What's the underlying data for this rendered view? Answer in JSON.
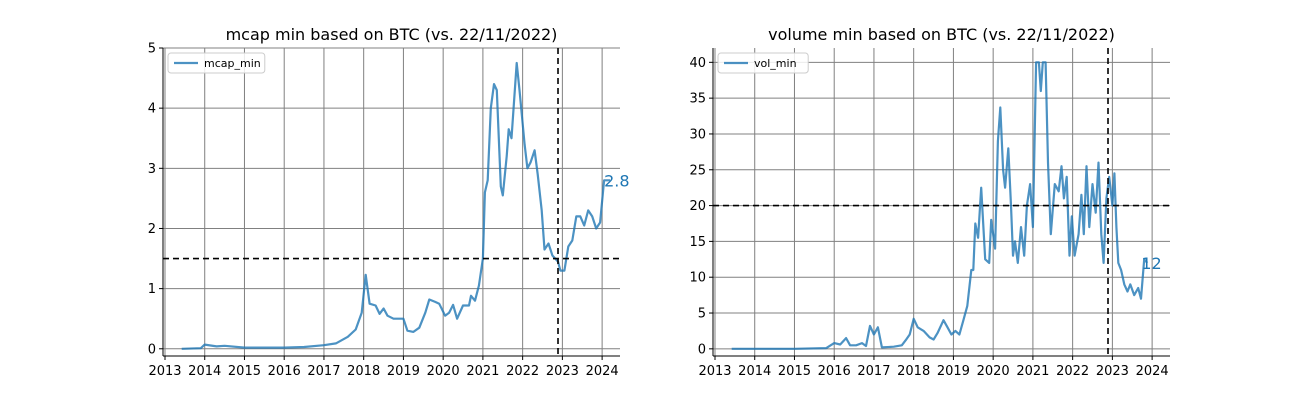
{
  "chart_data": [
    {
      "type": "line",
      "title": "mcap min based on BTC (vs. 22/11/2022)",
      "xlabel": "",
      "ylabel": "",
      "xlim": [
        2012.95,
        2024.45
      ],
      "ylim": [
        -0.12,
        5.0
      ],
      "xticks": [
        2013,
        2014,
        2015,
        2016,
        2017,
        2018,
        2019,
        2020,
        2021,
        2022,
        2023,
        2024
      ],
      "xtick_labels": [
        "2013",
        "2014",
        "2015",
        "2016",
        "2017",
        "2018",
        "2019",
        "2020",
        "2021",
        "2022",
        "2023",
        "2024"
      ],
      "yticks": [
        0,
        1,
        2,
        3,
        4,
        5
      ],
      "ytick_labels": [
        "0",
        "1",
        "2",
        "3",
        "4",
        "5"
      ],
      "grid": true,
      "legend_position": "top-left",
      "reference_lines": {
        "horizontal": 1.5,
        "vertical": 2022.89
      },
      "end_label": "2.8",
      "series": [
        {
          "name": "mcap_min",
          "color": "#1f77b4",
          "points": [
            [
              2013.42,
              0.0
            ],
            [
              2013.9,
              0.01
            ],
            [
              2014.0,
              0.07
            ],
            [
              2014.3,
              0.04
            ],
            [
              2014.5,
              0.05
            ],
            [
              2015.0,
              0.02
            ],
            [
              2015.5,
              0.02
            ],
            [
              2016.0,
              0.02
            ],
            [
              2016.5,
              0.03
            ],
            [
              2017.0,
              0.06
            ],
            [
              2017.3,
              0.09
            ],
            [
              2017.6,
              0.2
            ],
            [
              2017.8,
              0.32
            ],
            [
              2017.95,
              0.6
            ],
            [
              2018.05,
              1.23
            ],
            [
              2018.15,
              0.75
            ],
            [
              2018.3,
              0.72
            ],
            [
              2018.4,
              0.58
            ],
            [
              2018.5,
              0.67
            ],
            [
              2018.6,
              0.55
            ],
            [
              2018.75,
              0.5
            ],
            [
              2019.0,
              0.5
            ],
            [
              2019.1,
              0.3
            ],
            [
              2019.25,
              0.28
            ],
            [
              2019.4,
              0.35
            ],
            [
              2019.55,
              0.6
            ],
            [
              2019.65,
              0.82
            ],
            [
              2019.8,
              0.78
            ],
            [
              2019.9,
              0.75
            ],
            [
              2020.05,
              0.55
            ],
            [
              2020.15,
              0.6
            ],
            [
              2020.25,
              0.73
            ],
            [
              2020.35,
              0.5
            ],
            [
              2020.5,
              0.72
            ],
            [
              2020.65,
              0.72
            ],
            [
              2020.7,
              0.88
            ],
            [
              2020.8,
              0.8
            ],
            [
              2020.9,
              1.05
            ],
            [
              2021.0,
              1.5
            ],
            [
              2021.05,
              2.6
            ],
            [
              2021.12,
              2.8
            ],
            [
              2021.2,
              4.0
            ],
            [
              2021.28,
              4.4
            ],
            [
              2021.35,
              4.3
            ],
            [
              2021.45,
              2.7
            ],
            [
              2021.5,
              2.55
            ],
            [
              2021.6,
              3.2
            ],
            [
              2021.65,
              3.65
            ],
            [
              2021.72,
              3.5
            ],
            [
              2021.85,
              4.75
            ],
            [
              2021.92,
              4.3
            ],
            [
              2022.05,
              3.4
            ],
            [
              2022.12,
              3.0
            ],
            [
              2022.2,
              3.1
            ],
            [
              2022.3,
              3.3
            ],
            [
              2022.38,
              2.9
            ],
            [
              2022.48,
              2.3
            ],
            [
              2022.55,
              1.65
            ],
            [
              2022.65,
              1.75
            ],
            [
              2022.75,
              1.55
            ],
            [
              2022.89,
              1.45
            ],
            [
              2022.95,
              1.3
            ],
            [
              2023.05,
              1.3
            ],
            [
              2023.15,
              1.7
            ],
            [
              2023.25,
              1.8
            ],
            [
              2023.35,
              2.2
            ],
            [
              2023.45,
              2.2
            ],
            [
              2023.55,
              2.05
            ],
            [
              2023.65,
              2.3
            ],
            [
              2023.75,
              2.2
            ],
            [
              2023.85,
              2.0
            ],
            [
              2023.95,
              2.1
            ],
            [
              2024.05,
              2.8
            ],
            [
              2024.2,
              2.8
            ]
          ]
        }
      ]
    },
    {
      "type": "line",
      "title": "volume min based on BTC (vs. 22/11/2022)",
      "xlabel": "",
      "ylabel": "",
      "xlim": [
        2012.95,
        2024.45
      ],
      "ylim": [
        -1.0,
        42.0
      ],
      "xticks": [
        2013,
        2014,
        2015,
        2016,
        2017,
        2018,
        2019,
        2020,
        2021,
        2022,
        2023,
        2024
      ],
      "xtick_labels": [
        "2013",
        "2014",
        "2015",
        "2016",
        "2017",
        "2018",
        "2019",
        "2020",
        "2021",
        "2022",
        "2023",
        "2024"
      ],
      "yticks": [
        0,
        5,
        10,
        15,
        20,
        25,
        30,
        35,
        40
      ],
      "ytick_labels": [
        "0",
        "5",
        "10",
        "15",
        "20",
        "25",
        "30",
        "35",
        "40"
      ],
      "grid": true,
      "legend_position": "top-left",
      "reference_lines": {
        "horizontal": 20,
        "vertical": 2022.89
      },
      "end_label": "12",
      "series": [
        {
          "name": "vol_min",
          "color": "#1f77b4",
          "points": [
            [
              2013.42,
              0.0
            ],
            [
              2015.0,
              0.0
            ],
            [
              2015.8,
              0.1
            ],
            [
              2016.0,
              0.8
            ],
            [
              2016.15,
              0.6
            ],
            [
              2016.3,
              1.5
            ],
            [
              2016.4,
              0.5
            ],
            [
              2016.55,
              0.5
            ],
            [
              2016.7,
              0.8
            ],
            [
              2016.8,
              0.4
            ],
            [
              2016.9,
              3.2
            ],
            [
              2017.0,
              2.0
            ],
            [
              2017.1,
              3.0
            ],
            [
              2017.2,
              0.2
            ],
            [
              2017.5,
              0.3
            ],
            [
              2017.7,
              0.5
            ],
            [
              2017.8,
              1.2
            ],
            [
              2017.9,
              2.0
            ],
            [
              2018.0,
              4.2
            ],
            [
              2018.1,
              3.0
            ],
            [
              2018.25,
              2.5
            ],
            [
              2018.4,
              1.6
            ],
            [
              2018.5,
              1.3
            ],
            [
              2018.6,
              2.2
            ],
            [
              2018.75,
              4.0
            ],
            [
              2018.85,
              3.0
            ],
            [
              2018.95,
              2.0
            ],
            [
              2019.05,
              2.5
            ],
            [
              2019.15,
              2.0
            ],
            [
              2019.25,
              4.0
            ],
            [
              2019.35,
              6.0
            ],
            [
              2019.45,
              11.0
            ],
            [
              2019.5,
              11.0
            ],
            [
              2019.55,
              17.5
            ],
            [
              2019.62,
              15.5
            ],
            [
              2019.7,
              22.5
            ],
            [
              2019.8,
              12.5
            ],
            [
              2019.9,
              12.0
            ],
            [
              2019.95,
              18.0
            ],
            [
              2020.05,
              14.0
            ],
            [
              2020.12,
              29.0
            ],
            [
              2020.18,
              33.7
            ],
            [
              2020.25,
              25.0
            ],
            [
              2020.3,
              22.5
            ],
            [
              2020.38,
              28.0
            ],
            [
              2020.45,
              20.0
            ],
            [
              2020.5,
              13.0
            ],
            [
              2020.55,
              15.0
            ],
            [
              2020.62,
              12.0
            ],
            [
              2020.7,
              17.0
            ],
            [
              2020.78,
              13.0
            ],
            [
              2020.85,
              20.0
            ],
            [
              2020.93,
              23.0
            ],
            [
              2021.0,
              17.0
            ],
            [
              2021.08,
              40.0
            ],
            [
              2021.15,
              40.0
            ],
            [
              2021.2,
              36.0
            ],
            [
              2021.25,
              40.0
            ],
            [
              2021.32,
              40.0
            ],
            [
              2021.38,
              26.0
            ],
            [
              2021.45,
              16.0
            ],
            [
              2021.55,
              23.0
            ],
            [
              2021.65,
              22.0
            ],
            [
              2021.72,
              25.5
            ],
            [
              2021.78,
              21.0
            ],
            [
              2021.85,
              24.0
            ],
            [
              2021.92,
              13.0
            ],
            [
              2021.98,
              18.5
            ],
            [
              2022.05,
              13.0
            ],
            [
              2022.15,
              16.0
            ],
            [
              2022.22,
              21.5
            ],
            [
              2022.28,
              16.0
            ],
            [
              2022.35,
              25.5
            ],
            [
              2022.42,
              17.0
            ],
            [
              2022.5,
              23.0
            ],
            [
              2022.58,
              19.0
            ],
            [
              2022.65,
              26.0
            ],
            [
              2022.72,
              16.0
            ],
            [
              2022.78,
              12.0
            ],
            [
              2022.85,
              21.0
            ],
            [
              2022.92,
              24.0
            ],
            [
              2023.0,
              20.0
            ],
            [
              2023.05,
              24.5
            ],
            [
              2023.1,
              17.0
            ],
            [
              2023.15,
              12.0
            ],
            [
              2023.22,
              11.0
            ],
            [
              2023.3,
              9.0
            ],
            [
              2023.38,
              8.0
            ],
            [
              2023.45,
              9.0
            ],
            [
              2023.55,
              7.5
            ],
            [
              2023.65,
              8.5
            ],
            [
              2023.72,
              7.0
            ],
            [
              2023.8,
              12.5
            ],
            [
              2023.88,
              12.0
            ]
          ]
        }
      ]
    }
  ]
}
